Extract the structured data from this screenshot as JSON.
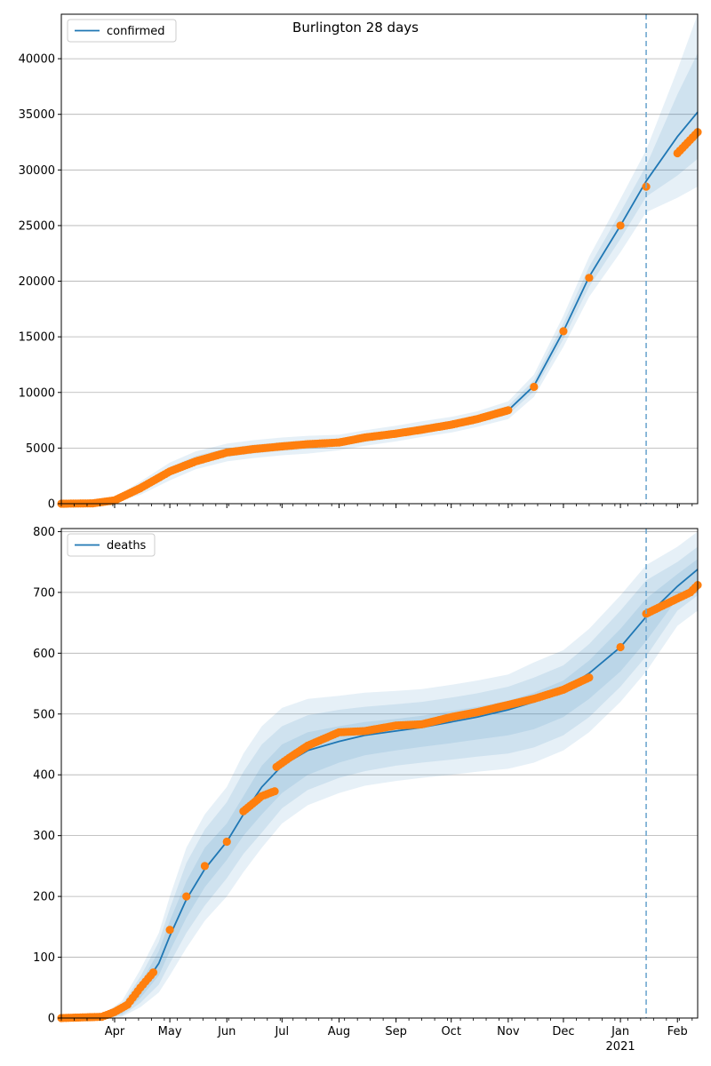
{
  "figure": {
    "title": "Burlington 28 days"
  },
  "colors": {
    "model": "#1f77b4",
    "observed": "#ff7f0e",
    "band": "#1f77b4",
    "grid": "#b0b0b0",
    "divider": "#6fa8d0"
  },
  "chart_data": [
    {
      "type": "line",
      "legend": {
        "label": "confirmed",
        "position": "top-left"
      },
      "ylim": [
        0,
        44000
      ],
      "yticks": [
        0,
        5000,
        10000,
        15000,
        20000,
        25000,
        30000,
        35000,
        40000
      ],
      "grid": "y",
      "xlim": [
        "2020-03-03",
        "2021-02-12"
      ],
      "xticks": [
        {
          "date": "2020-04-01",
          "label": "Apr"
        },
        {
          "date": "2020-05-01",
          "label": "May"
        },
        {
          "date": "2020-06-01",
          "label": "Jun"
        },
        {
          "date": "2020-07-01",
          "label": "Jul"
        },
        {
          "date": "2020-08-01",
          "label": "Aug"
        },
        {
          "date": "2020-09-01",
          "label": "Sep"
        },
        {
          "date": "2020-10-01",
          "label": "Oct"
        },
        {
          "date": "2020-11-01",
          "label": "Nov"
        },
        {
          "date": "2020-12-01",
          "label": "Dec"
        },
        {
          "date": "2021-01-01",
          "label": "Jan",
          "sublabel": "2021"
        },
        {
          "date": "2021-02-01",
          "label": "Feb"
        }
      ],
      "forecast_start": "2021-01-15",
      "model": {
        "x": [
          "2020-03-03",
          "2020-03-20",
          "2020-04-01",
          "2020-04-15",
          "2020-05-01",
          "2020-05-15",
          "2020-06-01",
          "2020-06-15",
          "2020-07-01",
          "2020-07-15",
          "2020-08-01",
          "2020-08-15",
          "2020-09-01",
          "2020-09-15",
          "2020-10-01",
          "2020-10-15",
          "2020-11-01",
          "2020-11-15",
          "2020-12-01",
          "2020-12-15",
          "2021-01-01",
          "2021-01-15",
          "2021-02-01",
          "2021-02-12"
        ],
        "median": [
          0,
          30,
          350,
          1400,
          2900,
          3900,
          4600,
          4900,
          5150,
          5300,
          5500,
          5900,
          6300,
          6700,
          7100,
          7600,
          8400,
          10600,
          15500,
          20400,
          25000,
          29000,
          33000,
          35200
        ],
        "bands": [
          {
            "lower": [
              0,
              20,
              250,
              1100,
              2500,
              3500,
              4200,
              4500,
              4750,
              4900,
              5150,
              5550,
              5950,
              6350,
              6750,
              7250,
              8000,
              10100,
              14800,
              19500,
              23800,
              27600,
              29500,
              31000
            ],
            "upper": [
              0,
              40,
              450,
              1700,
              3300,
              4300,
              5000,
              5300,
              5550,
              5700,
              5850,
              6250,
              6650,
              7050,
              7450,
              7950,
              8800,
              11100,
              16200,
              21300,
              26200,
              30400,
              36800,
              40500
            ]
          },
          {
            "lower": [
              0,
              10,
              150,
              800,
              2100,
              3100,
              3800,
              4100,
              4350,
              4500,
              4800,
              5200,
              5600,
              6000,
              6400,
              6900,
              7600,
              9600,
              14100,
              18600,
              22600,
              26200,
              27500,
              28500
            ],
            "upper": [
              0,
              50,
              550,
              2000,
              3700,
              4700,
              5400,
              5700,
              5950,
              6100,
              6200,
              6600,
              7000,
              7400,
              7800,
              8300,
              9200,
              11600,
              16900,
              22200,
              27400,
              31800,
              39000,
              44000
            ]
          }
        ]
      },
      "observed": {
        "x": [
          "2020-03-03",
          "2020-03-20",
          "2020-04-01",
          "2020-04-15",
          "2020-05-01",
          "2020-05-15",
          "2020-06-01",
          "2020-06-15",
          "2020-07-01",
          "2020-07-15",
          "2020-08-01",
          "2020-08-15",
          "2020-09-01",
          "2020-09-15",
          "2020-10-01",
          "2020-10-15",
          "2020-11-01",
          "2020-11-15",
          "2020-12-01",
          "2020-12-15",
          "2021-01-01",
          "2021-01-15",
          "2021-02-01",
          "2021-02-12"
        ],
        "y": [
          0,
          30,
          300,
          1400,
          2900,
          3800,
          4600,
          4900,
          5150,
          5350,
          5500,
          5950,
          6300,
          6650,
          7100,
          7600,
          8400,
          10500,
          15500,
          20300,
          25000,
          28500,
          31500,
          33400
        ]
      }
    },
    {
      "type": "line",
      "legend": {
        "label": "deaths",
        "position": "top-left"
      },
      "ylim": [
        0,
        805
      ],
      "yticks": [
        0,
        100,
        200,
        300,
        400,
        500,
        600,
        700,
        800
      ],
      "grid": "y",
      "xlim": [
        "2020-03-03",
        "2021-02-12"
      ],
      "xticks": [
        {
          "date": "2020-04-01",
          "label": "Apr"
        },
        {
          "date": "2020-05-01",
          "label": "May"
        },
        {
          "date": "2020-06-01",
          "label": "Jun"
        },
        {
          "date": "2020-07-01",
          "label": "Jul"
        },
        {
          "date": "2020-08-01",
          "label": "Aug"
        },
        {
          "date": "2020-09-01",
          "label": "Sep"
        },
        {
          "date": "2020-10-01",
          "label": "Oct"
        },
        {
          "date": "2020-11-01",
          "label": "Nov"
        },
        {
          "date": "2020-12-01",
          "label": "Dec"
        },
        {
          "date": "2021-01-01",
          "label": "Jan",
          "sublabel": "2021"
        },
        {
          "date": "2021-02-01",
          "label": "Feb"
        }
      ],
      "forecast_start": "2021-01-15",
      "model": {
        "x": [
          "2020-03-03",
          "2020-03-25",
          "2020-04-05",
          "2020-04-15",
          "2020-04-25",
          "2020-05-01",
          "2020-05-10",
          "2020-05-20",
          "2020-06-01",
          "2020-06-10",
          "2020-06-20",
          "2020-07-01",
          "2020-07-15",
          "2020-08-01",
          "2020-08-15",
          "2020-09-01",
          "2020-09-15",
          "2020-10-01",
          "2020-10-15",
          "2020-11-01",
          "2020-11-15",
          "2020-12-01",
          "2020-12-15",
          "2021-01-01",
          "2021-01-15",
          "2021-02-01",
          "2021-02-12"
        ],
        "median": [
          0,
          2,
          12,
          45,
          90,
          135,
          195,
          245,
          290,
          335,
          380,
          415,
          440,
          455,
          465,
          472,
          478,
          487,
          495,
          507,
          520,
          540,
          567,
          610,
          660,
          710,
          738
        ],
        "bands": [
          {
            "lower": [
              0,
              1,
              7,
              33,
              70,
              110,
              165,
              215,
              260,
              300,
              335,
              370,
              400,
              420,
              432,
              440,
              446,
              452,
              458,
              465,
              475,
              495,
              525,
              570,
              620,
              690,
              715
            ],
            "upper": [
              0,
              3,
              17,
              57,
              110,
              160,
              225,
              280,
              320,
              365,
              415,
              450,
              470,
              480,
              487,
              492,
              497,
              505,
              512,
              522,
              535,
              555,
              588,
              640,
              690,
              730,
              755
            ]
          },
          {
            "lower": [
              0,
              0,
              4,
              25,
              55,
              90,
              140,
              185,
              230,
              270,
              305,
              345,
              375,
              395,
              406,
              415,
              420,
              425,
              430,
              435,
              445,
              465,
              495,
              545,
              595,
              670,
              695
            ],
            "upper": [
              0,
              4,
              22,
              68,
              125,
              180,
              255,
              310,
              355,
              405,
              450,
              480,
              498,
              507,
              512,
              516,
              520,
              527,
              534,
              545,
              560,
              580,
              615,
              670,
              720,
              750,
              775
            ]
          },
          {
            "lower": [
              0,
              0,
              2,
              18,
              42,
              70,
              115,
              160,
              200,
              240,
              280,
              320,
              350,
              370,
              382,
              390,
              395,
              400,
              405,
              410,
              420,
              440,
              470,
              520,
              570,
              645,
              670
            ],
            "upper": [
              0,
              5,
              28,
              80,
              140,
              200,
              280,
              335,
              380,
              435,
              480,
              510,
              525,
              530,
              535,
              538,
              541,
              548,
              555,
              565,
              585,
              605,
              640,
              695,
              745,
              775,
              800
            ]
          }
        ]
      },
      "observed": {
        "x": [
          "2020-03-03",
          "2020-03-25",
          "2020-04-01",
          "2020-04-08",
          "2020-04-15",
          "2020-04-22",
          "2020-05-01",
          "2020-05-10",
          "2020-05-20",
          "2020-06-01",
          "2020-06-10",
          "2020-06-20",
          "2020-06-27",
          "2020-06-28",
          "2020-07-05",
          "2020-07-15",
          "2020-08-01",
          "2020-08-15",
          "2020-09-01",
          "2020-09-15",
          "2020-10-01",
          "2020-10-15",
          "2020-11-01",
          "2020-11-15",
          "2020-12-01",
          "2020-12-15",
          "2021-01-01",
          "2021-01-15",
          "2021-02-01",
          "2021-02-08",
          "2021-02-12"
        ],
        "y": [
          0,
          2,
          10,
          22,
          50,
          75,
          145,
          200,
          250,
          290,
          340,
          365,
          373,
          413,
          428,
          448,
          470,
          472,
          481,
          483,
          495,
          503,
          515,
          525,
          540,
          560,
          610,
          665,
          690,
          700,
          712
        ]
      }
    }
  ]
}
